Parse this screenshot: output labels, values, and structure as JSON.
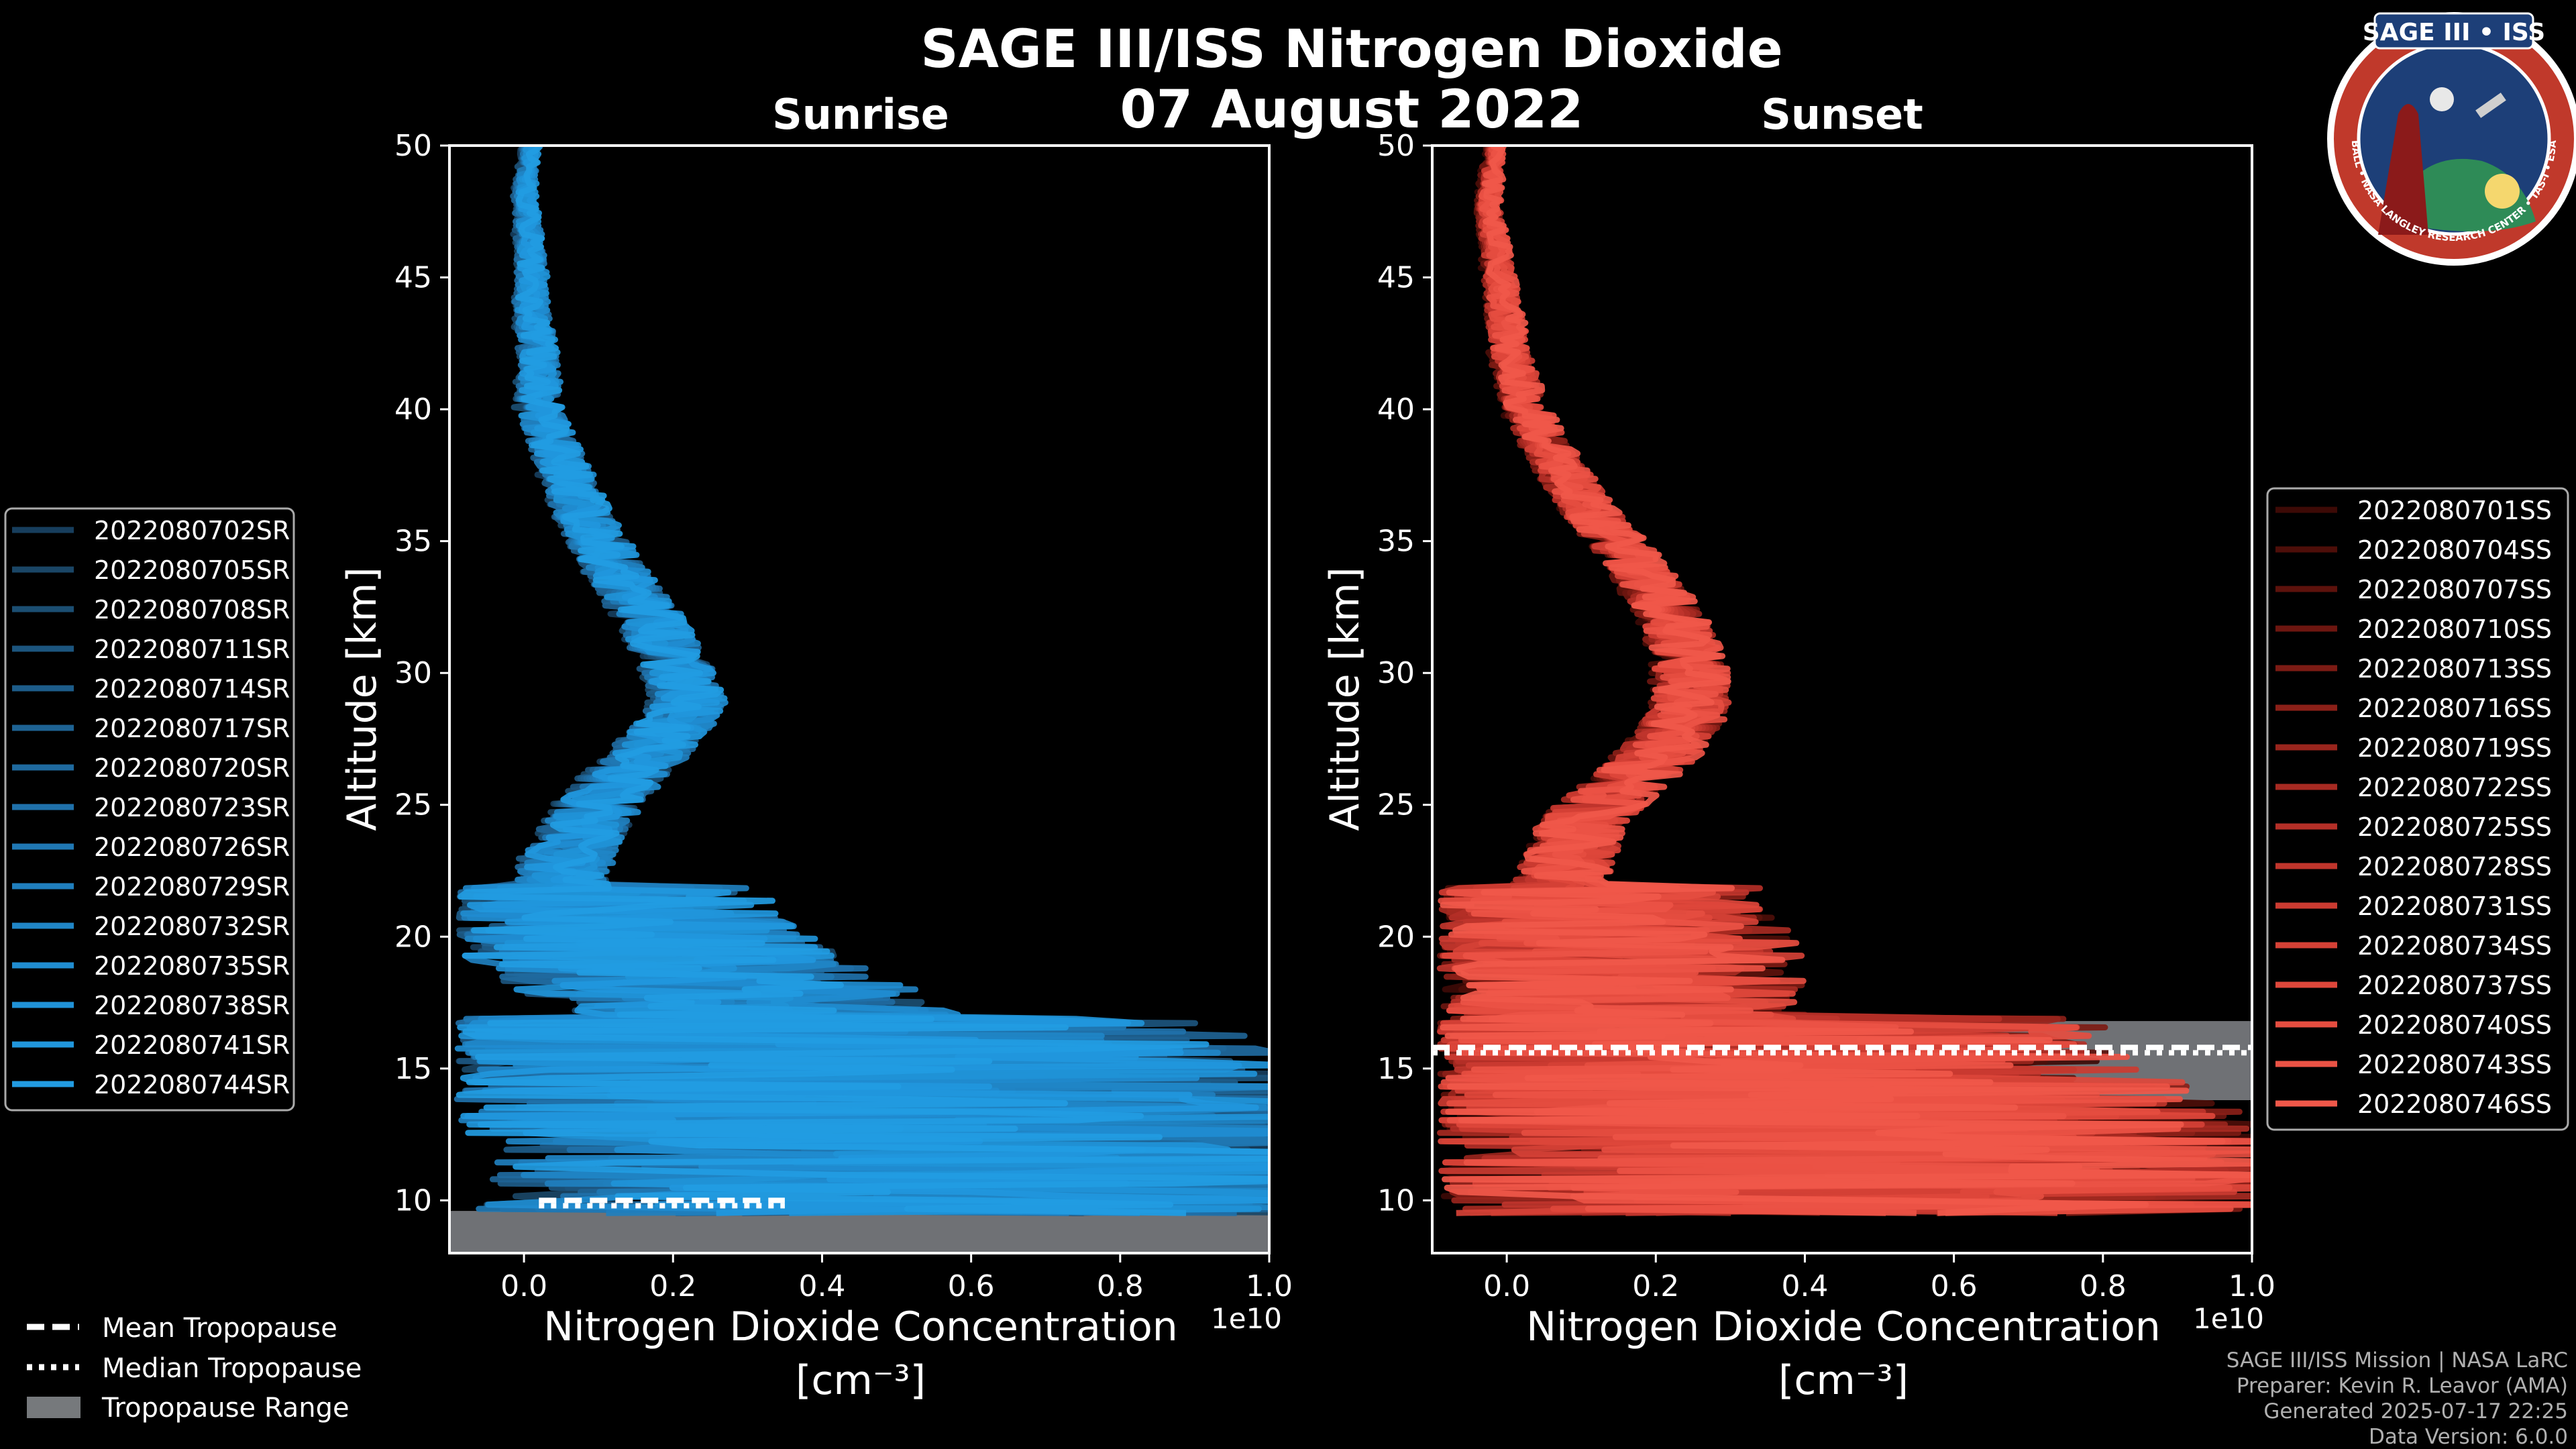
{
  "figure": {
    "title": "SAGE III/ISS Nitrogen Dioxide",
    "date": "07 August 2022"
  },
  "logo": {
    "text": "SAGE III • ISS",
    "ring_text": "BALL • NASA LANGLEY RESEARCH CENTER • TAS-I • ESA",
    "colors": {
      "ring": "#c0392b",
      "field": "#1d3f78",
      "border": "#ffffff"
    }
  },
  "footer": {
    "line1": "SAGE III/ISS Mission | NASA LaRC",
    "line2": "Preparer: Kevin R. Leavor (AMA)",
    "line3": "Generated 2025-07-17 22:25",
    "line4": "Data Version: 6.0.0"
  },
  "tropopause_legend": {
    "mean": "Mean Tropopause",
    "median": "Median Tropopause",
    "range": "Tropopause Range"
  },
  "chart_data": [
    {
      "type": "line",
      "panel": "sunrise",
      "title": "Sunrise",
      "xlabel": "Nitrogen Dioxide Concentration",
      "xunits": "[cm⁻³]",
      "ylabel": "Altitude [km]",
      "x_scale_label": "1e10",
      "xlim": [
        -0.1,
        1.0
      ],
      "ylim": [
        8,
        50
      ],
      "xticks": [
        0.0,
        0.2,
        0.4,
        0.6,
        0.8,
        1.0
      ],
      "xtick_labels": [
        "0.0",
        "0.2",
        "0.4",
        "0.6",
        "0.8",
        "1.0"
      ],
      "yticks": [
        10,
        15,
        20,
        25,
        30,
        35,
        40,
        45,
        50
      ],
      "ytick_labels": [
        "10",
        "15",
        "20",
        "25",
        "30",
        "35",
        "40",
        "45",
        "50"
      ],
      "color_family": "#1e90d6",
      "series": [
        {
          "name": "2022080702SR",
          "color": "#173e5d"
        },
        {
          "name": "2022080705SR",
          "color": "#1a4666"
        },
        {
          "name": "2022080708SR",
          "color": "#1b4e72"
        },
        {
          "name": "2022080711SR",
          "color": "#1c557e"
        },
        {
          "name": "2022080714SR",
          "color": "#1d5c89"
        },
        {
          "name": "2022080717SR",
          "color": "#1e6394"
        },
        {
          "name": "2022080720SR",
          "color": "#1f6a9f"
        },
        {
          "name": "2022080723SR",
          "color": "#1f71aa"
        },
        {
          "name": "2022080726SR",
          "color": "#2078b4"
        },
        {
          "name": "2022080729SR",
          "color": "#207fbe"
        },
        {
          "name": "2022080732SR",
          "color": "#2086c7"
        },
        {
          "name": "2022080735SR",
          "color": "#208cd0"
        },
        {
          "name": "2022080738SR",
          "color": "#2092d7"
        },
        {
          "name": "2022080741SR",
          "color": "#2197dd"
        },
        {
          "name": "2022080744SR",
          "color": "#229ce2"
        }
      ],
      "profile": [
        [
          50,
          0.0
        ],
        [
          48,
          -0.01
        ],
        [
          46,
          0.0
        ],
        [
          44,
          0.0
        ],
        [
          42,
          0.01
        ],
        [
          40,
          0.01
        ],
        [
          38,
          0.04
        ],
        [
          36,
          0.07
        ],
        [
          34,
          0.11
        ],
        [
          32,
          0.16
        ],
        [
          30,
          0.2
        ],
        [
          29,
          0.21
        ],
        [
          28,
          0.19
        ],
        [
          27,
          0.16
        ],
        [
          26,
          0.12
        ],
        [
          25,
          0.09
        ],
        [
          24,
          0.07
        ],
        [
          23,
          0.05
        ],
        [
          22,
          0.04
        ],
        [
          21,
          0.05
        ],
        [
          20,
          0.1
        ],
        [
          19,
          0.17
        ],
        [
          18,
          0.24
        ],
        [
          17,
          0.3
        ],
        [
          16,
          0.34
        ],
        [
          15,
          0.37
        ],
        [
          14,
          0.42
        ],
        [
          13,
          0.5
        ],
        [
          12,
          0.58
        ],
        [
          11,
          0.6
        ],
        [
          10,
          0.55
        ]
      ],
      "tropopause": {
        "mean_km": 10.0,
        "median_km": 10.0,
        "range_km": [
          8.0,
          9.6
        ],
        "range_x": [
          -0.1,
          1.0
        ],
        "line_x": [
          0.02,
          0.35
        ]
      }
    },
    {
      "type": "line",
      "panel": "sunset",
      "title": "Sunset",
      "xlabel": "Nitrogen Dioxide Concentration",
      "xunits": "[cm⁻³]",
      "ylabel": "Altitude [km]",
      "x_scale_label": "1e10",
      "xlim": [
        -0.1,
        1.0
      ],
      "ylim": [
        8,
        50
      ],
      "xticks": [
        0.0,
        0.2,
        0.4,
        0.6,
        0.8,
        1.0
      ],
      "xtick_labels": [
        "0.0",
        "0.2",
        "0.4",
        "0.6",
        "0.8",
        "1.0"
      ],
      "yticks": [
        10,
        15,
        20,
        25,
        30,
        35,
        40,
        45,
        50
      ],
      "ytick_labels": [
        "10",
        "15",
        "20",
        "25",
        "30",
        "35",
        "40",
        "45",
        "50"
      ],
      "color_family": "#f0533f",
      "series": [
        {
          "name": "2022080701SS",
          "color": "#3d0a06"
        },
        {
          "name": "2022080704SS",
          "color": "#4d0e09"
        },
        {
          "name": "2022080707SS",
          "color": "#5d120c"
        },
        {
          "name": "2022080710SS",
          "color": "#6d1610"
        },
        {
          "name": "2022080713SS",
          "color": "#7c1b14"
        },
        {
          "name": "2022080716SS",
          "color": "#8b2018"
        },
        {
          "name": "2022080719SS",
          "color": "#99251d"
        },
        {
          "name": "2022080722SS",
          "color": "#a72a22"
        },
        {
          "name": "2022080725SS",
          "color": "#b42f27"
        },
        {
          "name": "2022080728SS",
          "color": "#c0352c"
        },
        {
          "name": "2022080731SS",
          "color": "#cb3b31"
        },
        {
          "name": "2022080734SS",
          "color": "#d54136"
        },
        {
          "name": "2022080737SS",
          "color": "#de473b"
        },
        {
          "name": "2022080740SS",
          "color": "#e54d40"
        },
        {
          "name": "2022080743SS",
          "color": "#eb5345"
        },
        {
          "name": "2022080746SS",
          "color": "#f0584a"
        }
      ],
      "profile": [
        [
          50,
          0.0
        ],
        [
          48,
          -0.01
        ],
        [
          46,
          0.0
        ],
        [
          44,
          0.01
        ],
        [
          42,
          0.02
        ],
        [
          40,
          0.04
        ],
        [
          38,
          0.08
        ],
        [
          36,
          0.13
        ],
        [
          34,
          0.19
        ],
        [
          32,
          0.24
        ],
        [
          30,
          0.26
        ],
        [
          29,
          0.26
        ],
        [
          28,
          0.25
        ],
        [
          27,
          0.22
        ],
        [
          26,
          0.18
        ],
        [
          25,
          0.14
        ],
        [
          24,
          0.11
        ],
        [
          23,
          0.1
        ],
        [
          22,
          0.09
        ],
        [
          21,
          0.1
        ],
        [
          20,
          0.13
        ],
        [
          19,
          0.14
        ],
        [
          18,
          0.14
        ],
        [
          17,
          0.16
        ],
        [
          16,
          0.2
        ],
        [
          15,
          0.24
        ],
        [
          14,
          0.3
        ],
        [
          13,
          0.38
        ],
        [
          12,
          0.46
        ],
        [
          11,
          0.5
        ],
        [
          10,
          0.48
        ],
        [
          9.5,
          0.4
        ]
      ],
      "tropopause": {
        "mean_km": 15.8,
        "median_km": 15.8,
        "range_km": [
          13.8,
          16.8
        ],
        "range_x": [
          0.0,
          1.0
        ],
        "line_x": [
          -0.1,
          1.0
        ]
      }
    }
  ]
}
